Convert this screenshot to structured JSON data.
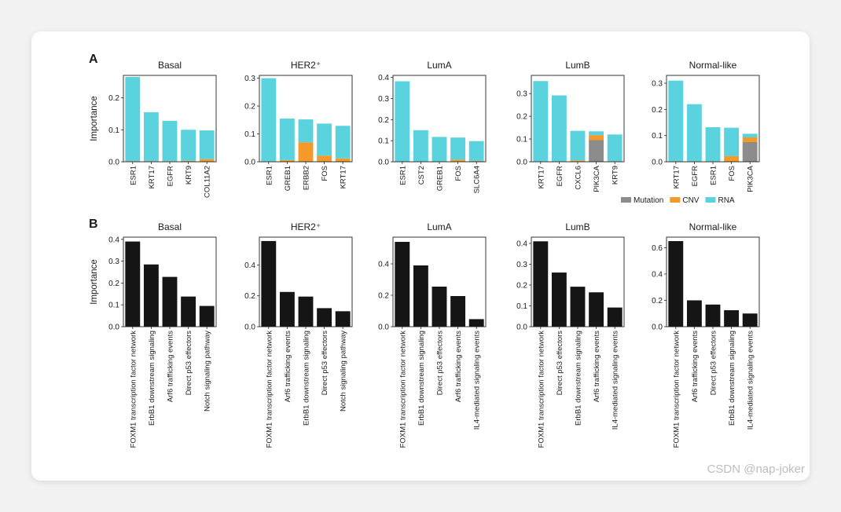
{
  "panel_labels": [
    "A",
    "B"
  ],
  "legend": [
    {
      "name": "Mutation",
      "color": "#8c8c8c"
    },
    {
      "name": "CNV",
      "color": "#f39a2b"
    },
    {
      "name": "RNA",
      "color": "#5bd3df"
    }
  ],
  "watermark": "CSDN @nap-joker",
  "chart_data": [
    {
      "panel": "A",
      "type": "bar",
      "stacked": true,
      "title": "Basal",
      "ylabel": "Importance",
      "xlabel": "",
      "categories": [
        "ESR1",
        "KRT17",
        "EGFR",
        "KRT9",
        "COL11A2"
      ],
      "series": [
        {
          "name": "Mutation",
          "values": [
            0,
            0,
            0,
            0,
            0
          ]
        },
        {
          "name": "CNV",
          "values": [
            0.002,
            0.002,
            0.002,
            0.003,
            0.008
          ]
        },
        {
          "name": "RNA",
          "values": [
            0.263,
            0.153,
            0.126,
            0.097,
            0.09
          ]
        }
      ],
      "ylim": [
        0,
        0.27
      ],
      "yticks": [
        "0.0",
        "0.1",
        "0.2"
      ]
    },
    {
      "panel": "A",
      "type": "bar",
      "stacked": true,
      "title": "HER2⁺",
      "ylabel": "",
      "xlabel": "",
      "categories": [
        "ESR1",
        "GREB1",
        "ERBB2",
        "FOS",
        "KRT17"
      ],
      "series": [
        {
          "name": "Mutation",
          "values": [
            0,
            0,
            0,
            0,
            0
          ]
        },
        {
          "name": "CNV",
          "values": [
            0.002,
            0.006,
            0.07,
            0.022,
            0.012
          ]
        },
        {
          "name": "RNA",
          "values": [
            0.298,
            0.149,
            0.082,
            0.115,
            0.117
          ]
        }
      ],
      "ylim": [
        0,
        0.31
      ],
      "yticks": [
        "0.0",
        "0.1",
        "0.2",
        "0.3"
      ]
    },
    {
      "panel": "A",
      "type": "bar",
      "stacked": true,
      "title": "LumA",
      "ylabel": "",
      "xlabel": "",
      "categories": [
        "ESR1",
        "CST2",
        "GREB1",
        "FOS",
        "SLC6A4"
      ],
      "series": [
        {
          "name": "Mutation",
          "values": [
            0,
            0,
            0,
            0,
            0
          ]
        },
        {
          "name": "CNV",
          "values": [
            0.002,
            0.002,
            0.002,
            0.01,
            0.004
          ]
        },
        {
          "name": "RNA",
          "values": [
            0.38,
            0.148,
            0.116,
            0.105,
            0.094
          ]
        }
      ],
      "ylim": [
        0,
        0.41
      ],
      "yticks": [
        "0.0",
        "0.1",
        "0.2",
        "0.3",
        "0.4"
      ]
    },
    {
      "panel": "A",
      "type": "bar",
      "stacked": true,
      "title": "LumB",
      "ylabel": "",
      "xlabel": "",
      "categories": [
        "KRT17",
        "EGFR",
        "CXCL6",
        "PIK3CA",
        "KRT9"
      ],
      "series": [
        {
          "name": "Mutation",
          "values": [
            0,
            0,
            0,
            0.095,
            0
          ]
        },
        {
          "name": "CNV",
          "values": [
            0.002,
            0.002,
            0.006,
            0.022,
            0.002
          ]
        },
        {
          "name": "RNA",
          "values": [
            0.353,
            0.29,
            0.13,
            0.017,
            0.118
          ]
        }
      ],
      "ylim": [
        0,
        0.38
      ],
      "yticks": [
        "0.0",
        "0.1",
        "0.2",
        "0.3"
      ]
    },
    {
      "panel": "A",
      "type": "bar",
      "stacked": true,
      "title": "Normal-like",
      "ylabel": "",
      "xlabel": "",
      "categories": [
        "KRT17",
        "EGFR",
        "ESR1",
        "FOS",
        "PIK3CA"
      ],
      "series": [
        {
          "name": "Mutation",
          "values": [
            0,
            0,
            0,
            0,
            0.075
          ]
        },
        {
          "name": "CNV",
          "values": [
            0.002,
            0.002,
            0.002,
            0.022,
            0.018
          ]
        },
        {
          "name": "RNA",
          "values": [
            0.308,
            0.218,
            0.13,
            0.108,
            0.014
          ]
        }
      ],
      "ylim": [
        0,
        0.33
      ],
      "yticks": [
        "0.0",
        "0.1",
        "0.2",
        "0.3"
      ]
    },
    {
      "panel": "B",
      "type": "bar",
      "stacked": false,
      "title": "Basal",
      "ylabel": "Importance",
      "xlabel": "",
      "categories": [
        "FOXM1 transcription factor network",
        "ErbB1 downstream signaling",
        "Arf6 trafficking events",
        "Direct p53 effectors",
        "Notch signaling pathway"
      ],
      "values": [
        0.39,
        0.285,
        0.228,
        0.138,
        0.095
      ],
      "ylim": [
        0,
        0.41
      ],
      "yticks": [
        "0.0",
        "0.1",
        "0.2",
        "0.3",
        "0.4"
      ]
    },
    {
      "panel": "B",
      "type": "bar",
      "stacked": false,
      "title": "HER2⁺",
      "ylabel": "",
      "xlabel": "",
      "categories": [
        "FOXM1 transcription factor network",
        "Arf6 trafficking events",
        "ErbB1 downstream signaling",
        "Direct p53 effectors",
        "Notch signaling pathway"
      ],
      "values": [
        0.555,
        0.225,
        0.195,
        0.12,
        0.1
      ],
      "ylim": [
        0,
        0.58
      ],
      "yticks": [
        "0.0",
        "0.2",
        "0.4"
      ]
    },
    {
      "panel": "B",
      "type": "bar",
      "stacked": false,
      "title": "LumA",
      "ylabel": "",
      "xlabel": "",
      "categories": [
        "FOXM1 transcription factor network",
        "ErbB1 downstream signaling",
        "Direct p53 effectors",
        "Arf6 trafficking events",
        "IL4-mediated signaling events"
      ],
      "values": [
        0.54,
        0.39,
        0.255,
        0.195,
        0.048
      ],
      "ylim": [
        0,
        0.57
      ],
      "yticks": [
        "0.0",
        "0.2",
        "0.4"
      ]
    },
    {
      "panel": "B",
      "type": "bar",
      "stacked": false,
      "title": "LumB",
      "ylabel": "",
      "xlabel": "",
      "categories": [
        "FOXM1 transcription factor network",
        "Direct p53 effectors",
        "ErbB1 downstream signaling",
        "Arf6 trafficking events",
        "IL4-mediated signaling events"
      ],
      "values": [
        0.41,
        0.26,
        0.192,
        0.165,
        0.092
      ],
      "ylim": [
        0,
        0.43
      ],
      "yticks": [
        "0.0",
        "0.1",
        "0.2",
        "0.3",
        "0.4"
      ]
    },
    {
      "panel": "B",
      "type": "bar",
      "stacked": false,
      "title": "Normal-like",
      "ylabel": "",
      "xlabel": "",
      "categories": [
        "FOXM1 transcription factor network",
        "Arf6 trafficking events",
        "Direct p53 effectors",
        "ErbB1 downstream signaling",
        "IL4-mediated signaling events"
      ],
      "values": [
        0.65,
        0.2,
        0.168,
        0.125,
        0.1
      ],
      "ylim": [
        0,
        0.68
      ],
      "yticks": [
        "0.0",
        "0.2",
        "0.4",
        "0.6"
      ]
    }
  ]
}
